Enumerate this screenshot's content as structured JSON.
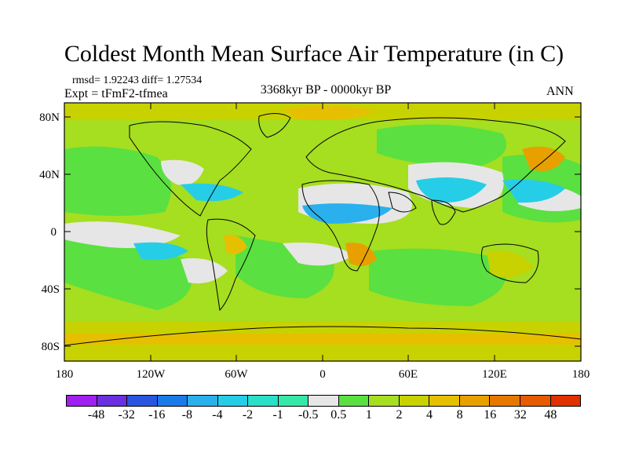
{
  "header": {
    "title": "Coldest Month Mean Surface Air Temperature (in C)",
    "stats": "rmsd= 1.92243 diff= 1.27534",
    "experiment": "Expt = tFmF2-tfmea",
    "period": "3368kyr BP - 0000kyr BP",
    "season": "ANN"
  },
  "map": {
    "lat_ticks": [
      "80N",
      "40N",
      "0",
      "40S",
      "80S"
    ],
    "lon_ticks": [
      "180",
      "120W",
      "60W",
      "0",
      "60E",
      "120E",
      "180"
    ]
  },
  "colorbar": {
    "colors": [
      "#a020f0",
      "#6a2fe0",
      "#2a55e0",
      "#1a7ae8",
      "#2ab0ec",
      "#26cde6",
      "#2ae0c8",
      "#36e8a8",
      "#e6e6e6",
      "#5ae040",
      "#a6de20",
      "#c8d200",
      "#e6c000",
      "#e8a000",
      "#e67800",
      "#e65a00",
      "#e03000"
    ],
    "labels": [
      "-48",
      "-32",
      "-16",
      "-8",
      "-4",
      "-2",
      "-1",
      "-0.5",
      "0.5",
      "1",
      "2",
      "4",
      "8",
      "16",
      "32",
      "48"
    ]
  }
}
